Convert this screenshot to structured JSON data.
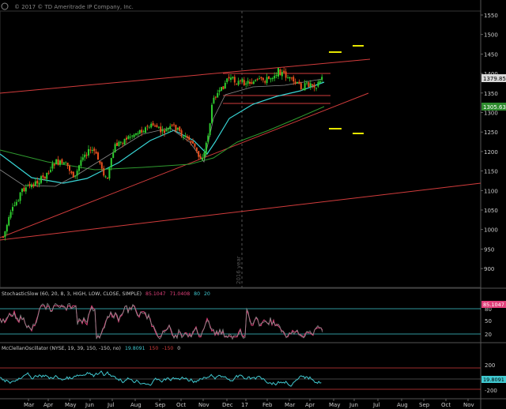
{
  "copyright": "© 2017 © TD Ameritrade IP Company, Inc.",
  "colors": {
    "background": "#000000",
    "up_candle": "#2ecc2e",
    "down_candle": "#e8501e",
    "trendline": "#d23c3c",
    "ma_fast": "#38d6d6",
    "ma_slow": "#2f9a2f",
    "ma_gray": "#8a8a8a",
    "yellow_levels": "#e6e600",
    "stoch": "#e0407a",
    "mcclellan": "#40c8d0",
    "price_label_bg": "#d8d8d8",
    "green_label_bg": "#2e8b2e"
  },
  "price_axis": {
    "ticks": [
      "1550",
      "1500",
      "1450",
      "1400",
      "1350",
      "1300",
      "1250",
      "1200",
      "1150",
      "1100",
      "1050",
      "1000",
      "950",
      "900"
    ]
  },
  "price_labels": {
    "last": "1379.85",
    "ma": "1305.63"
  },
  "year_marker": "2016 year",
  "stoch_panel": {
    "header_name": "StochasticSlow (60, 20, 8, 3, HIGH, LOW, CLOSE, SIMPLE)",
    "header_v1": "85.1047",
    "header_v2": "71.0408",
    "header_v3": "80",
    "header_v4": "20",
    "ticks": [
      "80",
      "50",
      "20"
    ],
    "value_label": "85.1047"
  },
  "mcclellan_panel": {
    "header_name": "McClellanOscillator (NYSE, 19, 39, 150, -150, no)",
    "header_v1": "19.8091",
    "header_v2": "150",
    "header_v3": "-150",
    "header_v4": "0",
    "ticks": [
      "200",
      "",
      "-200"
    ],
    "value_label": "19.8091"
  },
  "x_axis": {
    "months": [
      "Mar",
      "Apr",
      "May",
      "Jun",
      "Jul",
      "Aug",
      "Sep",
      "Oct",
      "Nov",
      "Dec",
      "17",
      "Feb",
      "Mar",
      "Apr",
      "May",
      "Jun",
      "Jul",
      "Aug",
      "Sep",
      "Oct",
      "Nov"
    ]
  }
}
